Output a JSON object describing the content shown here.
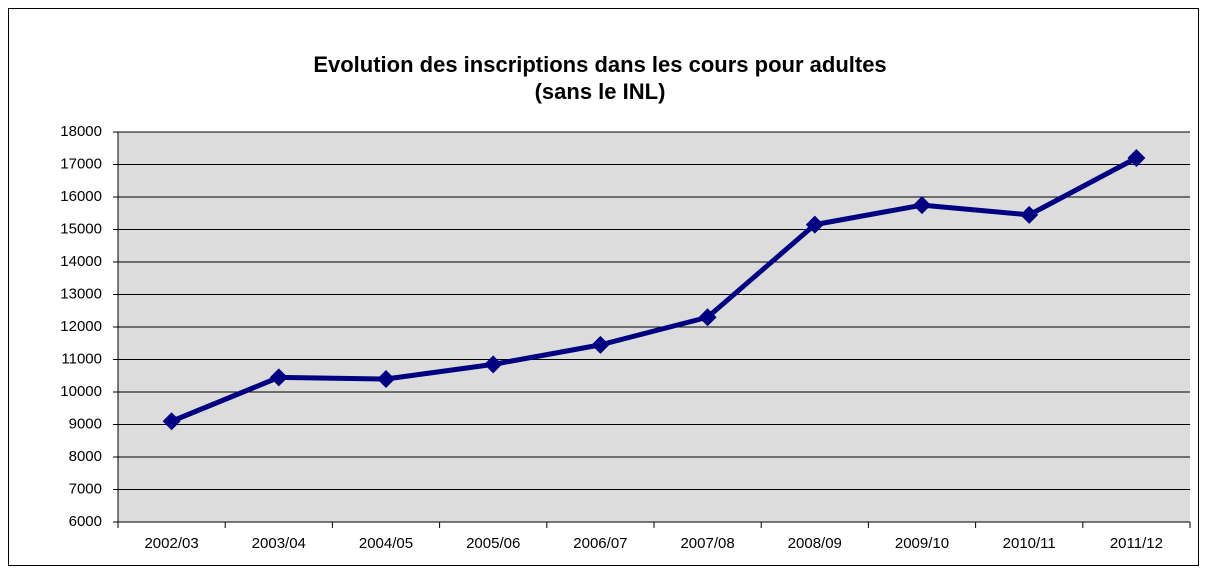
{
  "chart_data": {
    "type": "line",
    "title": "Evolution des inscriptions dans les cours  pour adultes",
    "subtitle": "(sans le INL)",
    "categories": [
      "2002/03",
      "2003/04",
      "2004/05",
      "2005/06",
      "2006/07",
      "2007/08",
      "2008/09",
      "2009/10",
      "2010/11",
      "2011/12"
    ],
    "values": [
      9100,
      10450,
      10400,
      10850,
      11450,
      12300,
      15150,
      15750,
      15450,
      17200
    ],
    "color": "#000080",
    "ylim": [
      6000,
      18000
    ],
    "yticks": [
      6000,
      7000,
      8000,
      9000,
      10000,
      11000,
      12000,
      13000,
      14000,
      15000,
      16000,
      17000,
      18000
    ],
    "grid": true
  }
}
